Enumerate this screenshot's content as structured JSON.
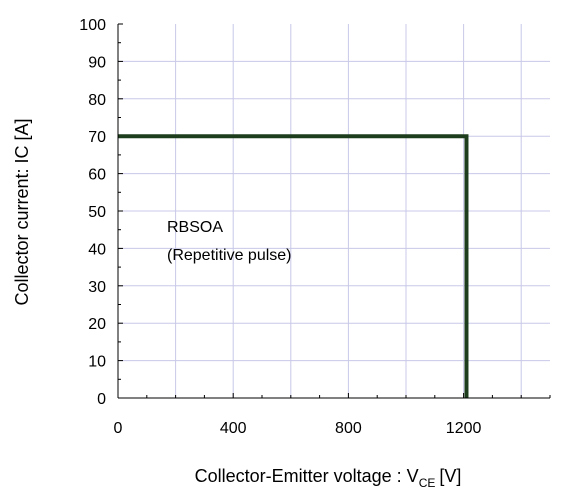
{
  "chart_data": {
    "type": "line",
    "xlabel": "Collector-Emitter voltage : V",
    "xlabel_sub": "CE",
    "xlabel_unit": "[V]",
    "ylabel": "Collector current: IC [A]",
    "xlim": [
      0,
      1500
    ],
    "ylim": [
      0,
      100
    ],
    "xticks": [
      0,
      400,
      800,
      1200
    ],
    "xtick_labels": [
      "0",
      "400",
      "800",
      "1200"
    ],
    "yticks": [
      0,
      10,
      20,
      30,
      40,
      50,
      60,
      70,
      80,
      90,
      100
    ],
    "ytick_labels": [
      "0",
      "10",
      "20",
      "30",
      "40",
      "50",
      "60",
      "70",
      "80",
      "90",
      "100"
    ],
    "xgrid": [
      0,
      200,
      400,
      600,
      800,
      1000,
      1200,
      1400
    ],
    "grid": true,
    "series": [
      {
        "x": [
          0,
          1210,
          1210
        ],
        "y": [
          70,
          70,
          0
        ]
      }
    ],
    "annotations": [
      "RBSOA",
      "(Repetitive pulse)"
    ],
    "colors": {
      "line": "#1d3d1d",
      "grid": "#c8c8e8",
      "axis": "#000000"
    }
  }
}
